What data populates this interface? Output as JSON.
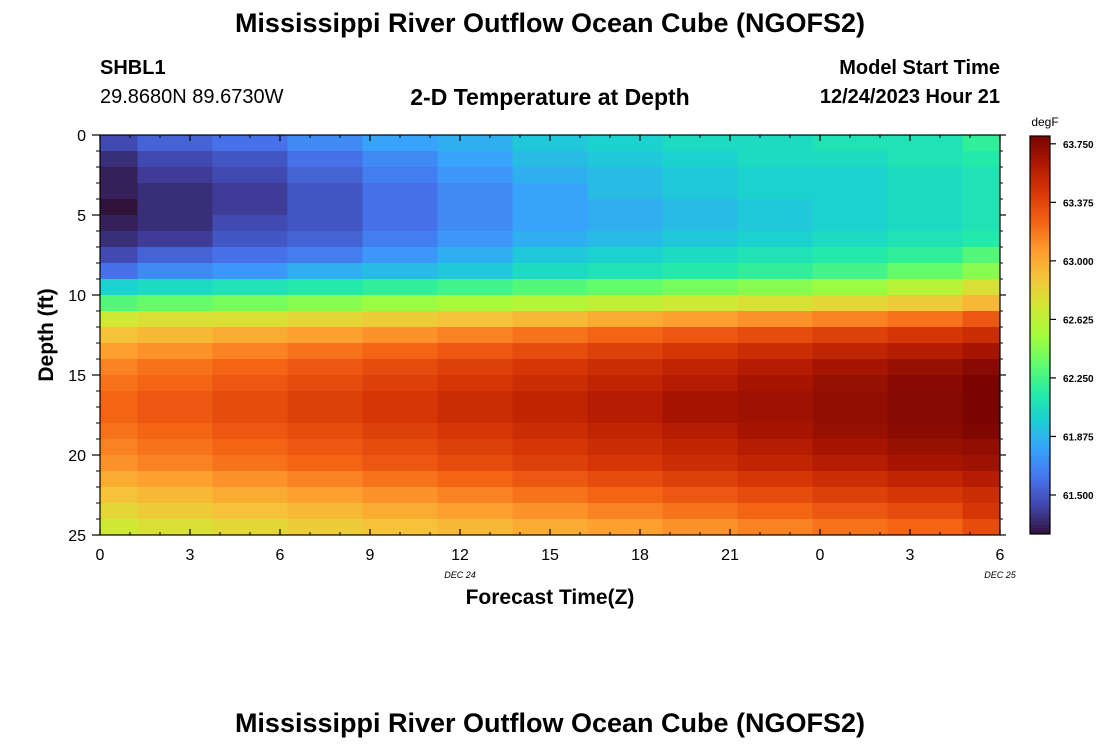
{
  "header": {
    "title": "Mississippi River Outflow Ocean Cube (NGOFS2)",
    "station_id": "SHBL1",
    "coords": "29.8680N  89.6730W",
    "subtitle": "2-D Temperature at Depth",
    "model_start_label": "Model Start Time",
    "model_start_value": "12/24/2023 Hour 21"
  },
  "footer": {
    "title": "Mississippi River Outflow Ocean Cube (NGOFS2)"
  },
  "chart_data": {
    "type": "heatmap",
    "title": "2-D Temperature at Depth",
    "xlabel": "Forecast Time(Z)",
    "ylabel": "Depth (ft)",
    "x_ticks": [
      "0",
      "3",
      "6",
      "9",
      "12",
      "15",
      "18",
      "21",
      "0",
      "3",
      "6"
    ],
    "x_date_labels": [
      {
        "label": "DEC 24",
        "hour": 12
      },
      {
        "label": "DEC 25",
        "hour": 30
      }
    ],
    "x_range": [
      0,
      30
    ],
    "y_ticks": [
      "0",
      "5",
      "10",
      "15",
      "20",
      "25"
    ],
    "y_range": [
      0,
      25
    ],
    "colorbar": {
      "unit": "degF",
      "min": 61.25,
      "max": 63.8,
      "tick_values": [
        61.5,
        61.875,
        62.25,
        62.625,
        63.0,
        63.375,
        63.75
      ],
      "tick_labels": [
        "61.500",
        "61.875",
        "62.250",
        "62.625",
        "63.000",
        "63.375",
        "63.750"
      ],
      "colors": [
        "#30123b",
        "#4145ab",
        "#4675ed",
        "#39a2fc",
        "#1bcfd4",
        "#24eca6",
        "#61fc6c",
        "#a4fc3b",
        "#d1e834",
        "#f3c63a",
        "#fe9b2d",
        "#f36315",
        "#d93806",
        "#b11901",
        "#7a0402"
      ]
    },
    "time_hours": [
      0,
      2.5,
      5,
      7.5,
      10,
      12.5,
      15,
      17.5,
      20,
      22.5,
      25,
      27.5,
      30
    ],
    "depth_ft": [
      0,
      1,
      2,
      3,
      4,
      5,
      6,
      7,
      8,
      9,
      10,
      11,
      12,
      13,
      14,
      15,
      16,
      17,
      18,
      19,
      20,
      21,
      22,
      23,
      24
    ],
    "temperature_degF": [
      [
        61.45,
        61.55,
        61.6,
        61.7,
        61.8,
        61.85,
        61.95,
        62.0,
        62.05,
        62.05,
        62.1,
        62.1,
        62.2
      ],
      [
        61.35,
        61.45,
        61.5,
        61.6,
        61.7,
        61.8,
        61.9,
        61.95,
        62.0,
        62.05,
        62.05,
        62.1,
        62.15
      ],
      [
        61.3,
        61.4,
        61.45,
        61.55,
        61.65,
        61.75,
        61.85,
        61.9,
        61.95,
        62.0,
        62.0,
        62.05,
        62.1
      ],
      [
        61.3,
        61.35,
        61.4,
        61.5,
        61.6,
        61.7,
        61.8,
        61.9,
        61.95,
        62.0,
        62.0,
        62.05,
        62.1
      ],
      [
        61.2,
        61.35,
        61.4,
        61.5,
        61.6,
        61.7,
        61.8,
        61.85,
        61.9,
        61.95,
        62.0,
        62.05,
        62.1
      ],
      [
        61.3,
        61.35,
        61.45,
        61.5,
        61.6,
        61.7,
        61.8,
        61.85,
        61.9,
        61.95,
        62.0,
        62.05,
        62.1
      ],
      [
        61.35,
        61.4,
        61.5,
        61.55,
        61.65,
        61.75,
        61.85,
        61.9,
        61.95,
        62.0,
        62.05,
        62.1,
        62.15
      ],
      [
        61.45,
        61.55,
        61.6,
        61.65,
        61.75,
        61.85,
        61.95,
        62.0,
        62.05,
        62.1,
        62.15,
        62.2,
        62.3
      ],
      [
        61.6,
        61.7,
        61.75,
        61.85,
        61.9,
        61.95,
        62.05,
        62.1,
        62.15,
        62.2,
        62.25,
        62.35,
        62.45
      ],
      [
        62.0,
        62.05,
        62.1,
        62.15,
        62.2,
        62.25,
        62.3,
        62.35,
        62.4,
        62.45,
        62.5,
        62.6,
        62.75
      ],
      [
        62.3,
        62.35,
        62.4,
        62.45,
        62.5,
        62.55,
        62.6,
        62.65,
        62.7,
        62.75,
        62.8,
        62.85,
        62.95
      ],
      [
        62.7,
        62.75,
        62.75,
        62.8,
        62.85,
        62.9,
        62.95,
        63.0,
        63.05,
        63.1,
        63.15,
        63.2,
        63.3
      ],
      [
        62.9,
        62.95,
        63.0,
        63.05,
        63.1,
        63.15,
        63.2,
        63.25,
        63.3,
        63.35,
        63.4,
        63.45,
        63.5
      ],
      [
        63.05,
        63.1,
        63.15,
        63.2,
        63.25,
        63.3,
        63.35,
        63.4,
        63.45,
        63.5,
        63.55,
        63.6,
        63.65
      ],
      [
        63.15,
        63.2,
        63.25,
        63.3,
        63.35,
        63.4,
        63.45,
        63.5,
        63.55,
        63.6,
        63.65,
        63.7,
        63.75
      ],
      [
        63.2,
        63.25,
        63.3,
        63.35,
        63.4,
        63.45,
        63.5,
        63.55,
        63.6,
        63.65,
        63.7,
        63.75,
        63.8
      ],
      [
        63.25,
        63.3,
        63.35,
        63.4,
        63.45,
        63.5,
        63.55,
        63.6,
        63.65,
        63.68,
        63.72,
        63.76,
        63.8
      ],
      [
        63.25,
        63.3,
        63.35,
        63.4,
        63.45,
        63.5,
        63.55,
        63.6,
        63.65,
        63.68,
        63.72,
        63.76,
        63.8
      ],
      [
        63.2,
        63.25,
        63.3,
        63.35,
        63.4,
        63.45,
        63.5,
        63.55,
        63.6,
        63.65,
        63.7,
        63.74,
        63.78
      ],
      [
        63.15,
        63.2,
        63.25,
        63.3,
        63.35,
        63.4,
        63.45,
        63.5,
        63.55,
        63.6,
        63.65,
        63.7,
        63.72
      ],
      [
        63.1,
        63.15,
        63.2,
        63.25,
        63.3,
        63.35,
        63.4,
        63.45,
        63.5,
        63.55,
        63.6,
        63.65,
        63.68
      ],
      [
        63.0,
        63.05,
        63.1,
        63.15,
        63.2,
        63.25,
        63.3,
        63.35,
        63.4,
        63.45,
        63.5,
        63.55,
        63.6
      ],
      [
        62.9,
        62.95,
        63.0,
        63.05,
        63.1,
        63.15,
        63.2,
        63.25,
        63.3,
        63.35,
        63.4,
        63.45,
        63.5
      ],
      [
        62.8,
        62.85,
        62.9,
        62.95,
        63.0,
        63.05,
        63.1,
        63.15,
        63.2,
        63.25,
        63.3,
        63.35,
        63.45
      ],
      [
        62.7,
        62.75,
        62.8,
        62.85,
        62.9,
        62.95,
        63.0,
        63.05,
        63.1,
        63.15,
        63.2,
        63.25,
        63.35
      ]
    ]
  }
}
